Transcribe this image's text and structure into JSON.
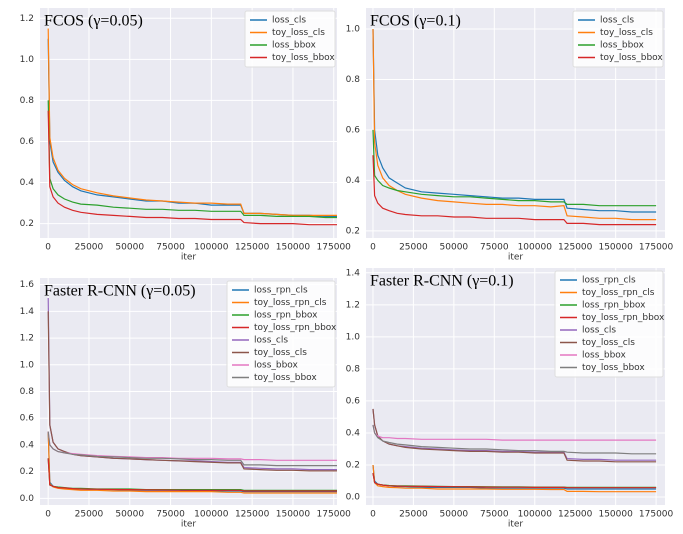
{
  "chart_data": [
    {
      "type": "line",
      "title": "FCOS (γ=0.05)",
      "xlabel": "iter",
      "grid": true,
      "legend": "upper right",
      "xlim": [
        -5000,
        177000
      ],
      "ylim": [
        0.13,
        1.25
      ],
      "xticks": [
        0,
        25000,
        50000,
        75000,
        100000,
        125000,
        150000,
        175000
      ],
      "yticks": [
        0.2,
        0.4,
        0.6,
        0.8,
        {
          "value": 1,
          "label": "1.0"
        },
        1.2
      ],
      "x": [
        0,
        1000,
        3000,
        6000,
        10000,
        15000,
        20000,
        30000,
        40000,
        50000,
        60000,
        70000,
        80000,
        90000,
        100000,
        110000,
        118000,
        120000,
        130000,
        140000,
        150000,
        160000,
        170000,
        177000
      ],
      "series": [
        {
          "name": "loss_cls",
          "color": "#1f77b4",
          "values": [
            1.1,
            0.6,
            0.5,
            0.45,
            0.41,
            0.38,
            0.36,
            0.34,
            0.33,
            0.32,
            0.31,
            0.31,
            0.3,
            0.3,
            0.29,
            0.29,
            0.29,
            0.25,
            0.25,
            0.245,
            0.24,
            0.24,
            0.235,
            0.235
          ]
        },
        {
          "name": "toy_loss_cls",
          "color": "#ff7f0e",
          "values": [
            1.15,
            0.62,
            0.52,
            0.46,
            0.42,
            0.39,
            0.37,
            0.35,
            0.335,
            0.325,
            0.315,
            0.31,
            0.305,
            0.3,
            0.3,
            0.295,
            0.295,
            0.25,
            0.25,
            0.245,
            0.24,
            0.24,
            0.24,
            0.24
          ]
        },
        {
          "name": "loss_bbox",
          "color": "#2ca02c",
          "values": [
            0.8,
            0.42,
            0.37,
            0.34,
            0.32,
            0.305,
            0.295,
            0.29,
            0.28,
            0.275,
            0.27,
            0.27,
            0.265,
            0.265,
            0.26,
            0.26,
            0.26,
            0.24,
            0.24,
            0.235,
            0.235,
            0.235,
            0.23,
            0.23
          ]
        },
        {
          "name": "toy_loss_bbox",
          "color": "#d62728",
          "values": [
            0.75,
            0.38,
            0.33,
            0.3,
            0.28,
            0.265,
            0.255,
            0.245,
            0.24,
            0.235,
            0.23,
            0.23,
            0.225,
            0.225,
            0.22,
            0.22,
            0.22,
            0.205,
            0.2,
            0.2,
            0.2,
            0.195,
            0.195,
            0.195
          ]
        }
      ]
    },
    {
      "type": "line",
      "title": "FCOS (γ=0.1)",
      "xlabel": "iter",
      "grid": true,
      "legend": "upper right",
      "xlim": [
        -4300,
        180500
      ],
      "ylim": [
        0.172,
        1.083
      ],
      "xticks": [
        0,
        25000,
        50000,
        75000,
        100000,
        125000,
        150000,
        175000
      ],
      "yticks": [
        0.2,
        0.4,
        0.6,
        0.8,
        {
          "value": 1,
          "label": "1.0"
        }
      ],
      "x": [
        0,
        1000,
        3000,
        6000,
        10000,
        15000,
        20000,
        30000,
        40000,
        50000,
        60000,
        70000,
        80000,
        90000,
        100000,
        110000,
        118000,
        120000,
        130000,
        140000,
        150000,
        160000,
        170000,
        175000
      ],
      "series": [
        {
          "name": "loss_cls",
          "color": "#1f77b4",
          "values": [
            1.0,
            0.6,
            0.5,
            0.45,
            0.41,
            0.39,
            0.37,
            0.355,
            0.35,
            0.345,
            0.34,
            0.335,
            0.33,
            0.33,
            0.325,
            0.325,
            0.325,
            0.29,
            0.285,
            0.28,
            0.28,
            0.275,
            0.275,
            0.275
          ]
        },
        {
          "name": "toy_loss_cls",
          "color": "#ff7f0e",
          "values": [
            1.0,
            0.55,
            0.46,
            0.41,
            0.38,
            0.36,
            0.345,
            0.33,
            0.32,
            0.315,
            0.31,
            0.305,
            0.305,
            0.3,
            0.3,
            0.295,
            0.3,
            0.26,
            0.255,
            0.25,
            0.25,
            0.245,
            0.245,
            0.245
          ]
        },
        {
          "name": "loss_bbox",
          "color": "#2ca02c",
          "values": [
            0.6,
            0.42,
            0.4,
            0.38,
            0.37,
            0.36,
            0.355,
            0.345,
            0.34,
            0.335,
            0.335,
            0.33,
            0.325,
            0.32,
            0.32,
            0.315,
            0.315,
            0.305,
            0.305,
            0.3,
            0.3,
            0.3,
            0.3,
            0.3
          ]
        },
        {
          "name": "toy_loss_bbox",
          "color": "#d62728",
          "values": [
            0.5,
            0.34,
            0.31,
            0.29,
            0.28,
            0.27,
            0.265,
            0.26,
            0.26,
            0.255,
            0.255,
            0.25,
            0.25,
            0.25,
            0.245,
            0.245,
            0.245,
            0.23,
            0.23,
            0.225,
            0.225,
            0.225,
            0.225,
            0.225
          ]
        }
      ]
    },
    {
      "type": "line",
      "title": "Faster R-CNN (γ=0.05)",
      "xlabel": "iter",
      "grid": true,
      "legend": "upper right",
      "xlim": [
        -5000,
        177000
      ],
      "ylim": [
        -0.05,
        1.65
      ],
      "xticks": [
        0,
        25000,
        50000,
        75000,
        100000,
        125000,
        150000,
        175000
      ],
      "yticks": [
        {
          "value": 0,
          "label": "0.0"
        },
        0.2,
        0.4,
        0.6,
        0.8,
        {
          "value": 1,
          "label": "1.0"
        },
        1.2,
        1.4,
        1.6
      ],
      "x": [
        0,
        1000,
        3000,
        6000,
        10000,
        15000,
        20000,
        30000,
        40000,
        50000,
        60000,
        70000,
        80000,
        90000,
        100000,
        110000,
        118000,
        120000,
        130000,
        140000,
        150000,
        160000,
        170000,
        177000
      ],
      "series": [
        {
          "name": "loss_rpn_cls",
          "color": "#1f77b4",
          "values": [
            0.5,
            0.12,
            0.09,
            0.08,
            0.075,
            0.07,
            0.07,
            0.065,
            0.065,
            0.06,
            0.06,
            0.06,
            0.06,
            0.055,
            0.055,
            0.055,
            0.055,
            0.05,
            0.05,
            0.05,
            0.05,
            0.05,
            0.05,
            0.05
          ]
        },
        {
          "name": "toy_loss_rpn_cls",
          "color": "#ff7f0e",
          "values": [
            0.5,
            0.11,
            0.085,
            0.075,
            0.07,
            0.065,
            0.06,
            0.06,
            0.055,
            0.055,
            0.05,
            0.05,
            0.05,
            0.05,
            0.05,
            0.045,
            0.045,
            0.04,
            0.04,
            0.04,
            0.04,
            0.04,
            0.04,
            0.04
          ]
        },
        {
          "name": "loss_rpn_bbox",
          "color": "#2ca02c",
          "values": [
            0.3,
            0.1,
            0.09,
            0.085,
            0.08,
            0.075,
            0.075,
            0.07,
            0.07,
            0.07,
            0.065,
            0.065,
            0.065,
            0.065,
            0.065,
            0.065,
            0.065,
            0.06,
            0.06,
            0.06,
            0.06,
            0.06,
            0.06,
            0.06
          ]
        },
        {
          "name": "toy_loss_rpn_bbox",
          "color": "#d62728",
          "values": [
            0.3,
            0.1,
            0.09,
            0.08,
            0.078,
            0.073,
            0.07,
            0.068,
            0.066,
            0.065,
            0.063,
            0.062,
            0.061,
            0.06,
            0.06,
            0.06,
            0.06,
            0.055,
            0.055,
            0.055,
            0.055,
            0.055,
            0.055,
            0.055
          ]
        },
        {
          "name": "loss_cls",
          "color": "#9467bd",
          "values": [
            1.5,
            0.55,
            0.42,
            0.37,
            0.35,
            0.33,
            0.32,
            0.31,
            0.3,
            0.295,
            0.29,
            0.285,
            0.28,
            0.28,
            0.275,
            0.27,
            0.27,
            0.23,
            0.225,
            0.22,
            0.22,
            0.215,
            0.215,
            0.215
          ]
        },
        {
          "name": "toy_loss_cls",
          "color": "#8c564b",
          "values": [
            1.4,
            0.55,
            0.42,
            0.37,
            0.35,
            0.33,
            0.32,
            0.31,
            0.3,
            0.295,
            0.29,
            0.285,
            0.28,
            0.275,
            0.27,
            0.265,
            0.265,
            0.22,
            0.215,
            0.21,
            0.21,
            0.205,
            0.205,
            0.205
          ]
        },
        {
          "name": "loss_bbox",
          "color": "#e377c2",
          "values": [
            0.5,
            0.4,
            0.37,
            0.35,
            0.34,
            0.335,
            0.33,
            0.32,
            0.315,
            0.31,
            0.305,
            0.305,
            0.3,
            0.3,
            0.3,
            0.295,
            0.295,
            0.29,
            0.29,
            0.285,
            0.285,
            0.285,
            0.285,
            0.285
          ]
        },
        {
          "name": "toy_loss_bbox",
          "color": "#7f7f7f",
          "values": [
            0.5,
            0.4,
            0.37,
            0.35,
            0.34,
            0.33,
            0.325,
            0.315,
            0.31,
            0.305,
            0.3,
            0.3,
            0.295,
            0.29,
            0.29,
            0.285,
            0.285,
            0.25,
            0.25,
            0.245,
            0.245,
            0.245,
            0.245,
            0.245
          ]
        }
      ]
    },
    {
      "type": "line",
      "title": "Faster R-CNN (γ=0.1)",
      "xlabel": "iter",
      "grid": true,
      "legend": "upper right",
      "xlim": [
        -4300,
        180500
      ],
      "ylim": [
        -0.05,
        1.43
      ],
      "xticks": [
        0,
        25000,
        50000,
        75000,
        100000,
        125000,
        150000,
        175000
      ],
      "yticks": [
        {
          "value": 0,
          "label": "0.0"
        },
        0.2,
        0.4,
        0.6,
        0.8,
        {
          "value": 1,
          "label": "1.0"
        },
        1.2,
        1.4
      ],
      "x": [
        0,
        1000,
        3000,
        6000,
        10000,
        15000,
        20000,
        30000,
        40000,
        50000,
        60000,
        70000,
        80000,
        90000,
        100000,
        110000,
        118000,
        120000,
        130000,
        140000,
        150000,
        160000,
        170000,
        175000
      ],
      "series": [
        {
          "name": "loss_rpn_cls",
          "color": "#1f77b4",
          "values": [
            0.2,
            0.1,
            0.08,
            0.075,
            0.07,
            0.065,
            0.065,
            0.06,
            0.06,
            0.06,
            0.06,
            0.055,
            0.055,
            0.055,
            0.055,
            0.055,
            0.055,
            0.05,
            0.05,
            0.05,
            0.05,
            0.05,
            0.05,
            0.05
          ]
        },
        {
          "name": "toy_loss_rpn_cls",
          "color": "#ff7f0e",
          "values": [
            0.2,
            0.09,
            0.07,
            0.065,
            0.06,
            0.058,
            0.055,
            0.055,
            0.05,
            0.05,
            0.05,
            0.05,
            0.048,
            0.048,
            0.048,
            0.047,
            0.047,
            0.035,
            0.035,
            0.033,
            0.033,
            0.033,
            0.033,
            0.033
          ]
        },
        {
          "name": "loss_rpn_bbox",
          "color": "#2ca02c",
          "values": [
            0.15,
            0.09,
            0.08,
            0.075,
            0.072,
            0.07,
            0.07,
            0.068,
            0.066,
            0.065,
            0.065,
            0.064,
            0.063,
            0.063,
            0.062,
            0.062,
            0.062,
            0.06,
            0.06,
            0.06,
            0.06,
            0.06,
            0.06,
            0.06
          ]
        },
        {
          "name": "toy_loss_rpn_bbox",
          "color": "#d62728",
          "values": [
            0.15,
            0.09,
            0.08,
            0.074,
            0.07,
            0.068,
            0.067,
            0.066,
            0.065,
            0.064,
            0.063,
            0.062,
            0.061,
            0.061,
            0.06,
            0.06,
            0.06,
            0.058,
            0.058,
            0.058,
            0.058,
            0.058,
            0.058,
            0.058
          ]
        },
        {
          "name": "loss_cls",
          "color": "#9467bd",
          "values": [
            0.55,
            0.45,
            0.38,
            0.35,
            0.33,
            0.32,
            0.315,
            0.305,
            0.3,
            0.295,
            0.29,
            0.29,
            0.285,
            0.285,
            0.28,
            0.28,
            0.28,
            0.24,
            0.235,
            0.235,
            0.23,
            0.23,
            0.23,
            0.23
          ]
        },
        {
          "name": "toy_loss_cls",
          "color": "#8c564b",
          "values": [
            0.55,
            0.45,
            0.38,
            0.35,
            0.33,
            0.32,
            0.31,
            0.3,
            0.295,
            0.29,
            0.285,
            0.285,
            0.28,
            0.28,
            0.275,
            0.275,
            0.275,
            0.23,
            0.225,
            0.225,
            0.22,
            0.22,
            0.22,
            0.22
          ]
        },
        {
          "name": "loss_bbox",
          "color": "#e377c2",
          "values": [
            0.45,
            0.4,
            0.38,
            0.37,
            0.37,
            0.365,
            0.365,
            0.36,
            0.36,
            0.36,
            0.36,
            0.36,
            0.355,
            0.355,
            0.355,
            0.355,
            0.355,
            0.355,
            0.355,
            0.355,
            0.355,
            0.355,
            0.355,
            0.355
          ]
        },
        {
          "name": "toy_loss_bbox",
          "color": "#7f7f7f",
          "values": [
            0.45,
            0.4,
            0.37,
            0.35,
            0.34,
            0.33,
            0.325,
            0.315,
            0.31,
            0.305,
            0.3,
            0.3,
            0.295,
            0.29,
            0.29,
            0.285,
            0.285,
            0.28,
            0.275,
            0.275,
            0.275,
            0.27,
            0.27,
            0.27
          ]
        }
      ]
    }
  ]
}
